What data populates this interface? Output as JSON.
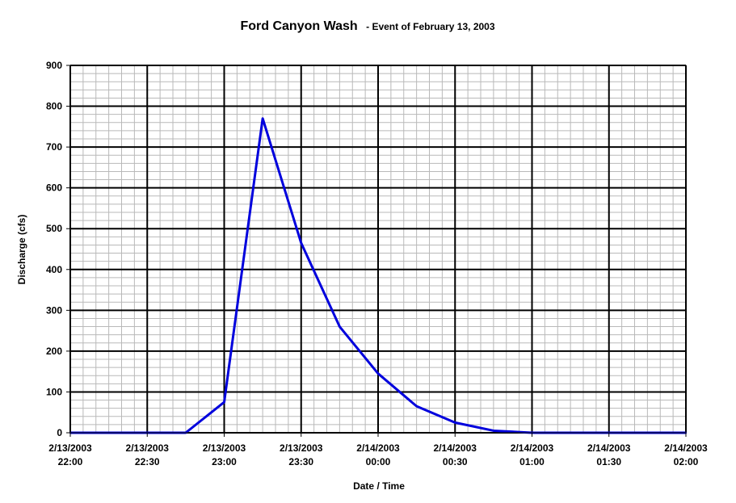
{
  "chart_data": {
    "type": "line",
    "title": "Ford Canyon Wash",
    "subtitle": "- Event of February 13, 2003",
    "xlabel": "Date / Time",
    "ylabel": "Discharge (cfs)",
    "ylim": [
      0,
      900
    ],
    "y_ticks": [
      0,
      100,
      200,
      300,
      400,
      500,
      600,
      700,
      800,
      900
    ],
    "x_ticks": [
      {
        "date": "2/13/2003",
        "time": "22:00"
      },
      {
        "date": "2/13/2003",
        "time": "22:30"
      },
      {
        "date": "2/13/2003",
        "time": "23:00"
      },
      {
        "date": "2/13/2003",
        "time": "23:30"
      },
      {
        "date": "2/14/2003",
        "time": "00:00"
      },
      {
        "date": "2/14/2003",
        "time": "00:30"
      },
      {
        "date": "2/14/2003",
        "time": "01:00"
      },
      {
        "date": "2/14/2003",
        "time": "01:30"
      },
      {
        "date": "2/14/2003",
        "time": "02:00"
      }
    ],
    "xlim": [
      "2003-02-13 22:00",
      "2003-02-14 02:00"
    ],
    "grid": "major and minor",
    "series": [
      {
        "color": "#0000dd",
        "points": [
          {
            "x": "2003-02-13 22:00",
            "y": 0
          },
          {
            "x": "2003-02-13 22:15",
            "y": 0
          },
          {
            "x": "2003-02-13 22:30",
            "y": 0
          },
          {
            "x": "2003-02-13 22:45",
            "y": 0
          },
          {
            "x": "2003-02-13 23:00",
            "y": 75
          },
          {
            "x": "2003-02-13 23:15",
            "y": 770
          },
          {
            "x": "2003-02-13 23:30",
            "y": 465
          },
          {
            "x": "2003-02-13 23:45",
            "y": 260
          },
          {
            "x": "2003-02-14 00:00",
            "y": 145
          },
          {
            "x": "2003-02-14 00:15",
            "y": 65
          },
          {
            "x": "2003-02-14 00:30",
            "y": 25
          },
          {
            "x": "2003-02-14 00:45",
            "y": 5
          },
          {
            "x": "2003-02-14 01:00",
            "y": 0
          },
          {
            "x": "2003-02-14 01:15",
            "y": 0
          },
          {
            "x": "2003-02-14 01:30",
            "y": 0
          },
          {
            "x": "2003-02-14 01:45",
            "y": 0
          },
          {
            "x": "2003-02-14 02:00",
            "y": 0
          }
        ]
      }
    ]
  }
}
